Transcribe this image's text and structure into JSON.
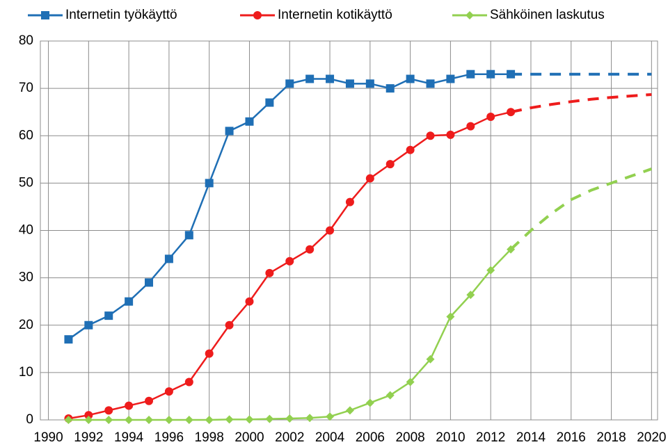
{
  "chart_data": {
    "type": "line",
    "x": [
      1991,
      1992,
      1993,
      1994,
      1995,
      1996,
      1997,
      1998,
      1999,
      2000,
      2001,
      2002,
      2003,
      2004,
      2005,
      2006,
      2007,
      2008,
      2009,
      2010,
      2011,
      2012,
      2013
    ],
    "forecast_x": [
      2013,
      2014,
      2015,
      2016,
      2017,
      2018,
      2019,
      2020
    ],
    "series": [
      {
        "name": "Internetin työkäyttö",
        "color": "#1f6fb5",
        "marker": "square",
        "values": [
          17,
          20,
          22,
          25,
          29,
          34,
          39,
          50,
          61,
          63,
          67,
          71,
          72,
          72,
          71,
          71,
          70,
          72,
          71,
          72,
          73,
          73,
          73
        ],
        "forecast": [
          73,
          73,
          73,
          73,
          73,
          73,
          73,
          73
        ]
      },
      {
        "name": "Internetin kotikäyttö",
        "color": "#ee1c1c",
        "marker": "circle",
        "values": [
          0.3,
          1,
          2,
          3,
          4,
          6,
          8,
          14,
          20,
          25,
          31,
          33.5,
          36,
          40,
          46,
          51,
          54,
          57,
          60,
          60.2,
          62,
          64,
          65
        ],
        "forecast": [
          65,
          65.9,
          66.6,
          67.2,
          67.7,
          68.1,
          68.4,
          68.7
        ]
      },
      {
        "name": "Sähköinen laskutus",
        "color": "#92d050",
        "marker": "diamond",
        "values": [
          0,
          0,
          0,
          0,
          0,
          0,
          0,
          0,
          0.1,
          0.1,
          0.2,
          0.3,
          0.4,
          0.7,
          2,
          3.6,
          5.2,
          8,
          12.8,
          21.8,
          26.4,
          31.6,
          36
        ],
        "forecast": [
          36,
          40,
          43.5,
          46.5,
          48.5,
          50,
          51.5,
          53
        ]
      }
    ],
    "xlim": [
      1989.6,
      2020.3
    ],
    "xticks": [
      1990,
      1992,
      1994,
      1996,
      1998,
      2000,
      2002,
      2004,
      2006,
      2008,
      2010,
      2012,
      2014,
      2016,
      2018,
      2020
    ],
    "ylim": [
      0,
      80
    ],
    "yticks": [
      0,
      10,
      20,
      30,
      40,
      50,
      60,
      70,
      80
    ],
    "grid": true
  }
}
